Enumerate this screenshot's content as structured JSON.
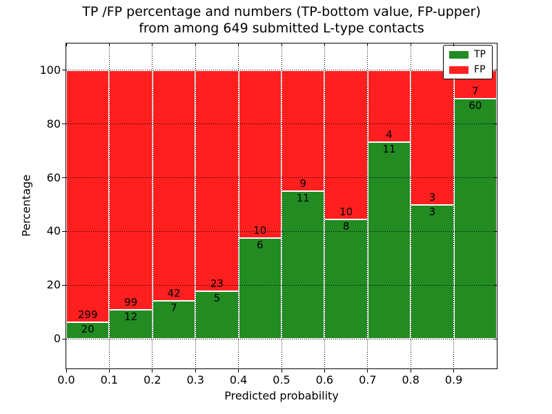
{
  "figure": {
    "title_line1": "TP /FP percentage and numbers (TP-bottom value, FP-upper)",
    "title_line2": "from among 649 submitted L-type contacts"
  },
  "chart_data": {
    "type": "bar",
    "stacked": true,
    "normalized": "percent-of-bin-total",
    "title": "TP /FP percentage and numbers (TP-bottom value, FP-upper)\nfrom among 649 submitted L-type contacts",
    "xlabel": "Predicted probability",
    "ylabel": "Percentage",
    "total_contacts": 649,
    "bin_width": 0.1,
    "bin_starts": [
      0.0,
      0.1,
      0.2,
      0.3,
      0.4,
      0.5,
      0.6,
      0.7,
      0.8,
      0.9
    ],
    "series": [
      {
        "name": "TP",
        "color": "#228b22",
        "counts": [
          20,
          12,
          7,
          5,
          6,
          11,
          8,
          11,
          3,
          60
        ]
      },
      {
        "name": "FP",
        "color": "#ff1f1f",
        "counts": [
          299,
          99,
          42,
          23,
          10,
          9,
          10,
          4,
          3,
          7
        ]
      }
    ],
    "tp_percent": [
      6.27,
      10.81,
      14.29,
      17.86,
      37.5,
      55.0,
      44.44,
      73.33,
      50.0,
      89.55
    ],
    "bar_value_labels": "TP count below boundary, FP count above boundary",
    "xlim": [
      0,
      1
    ],
    "ylim": [
      -11,
      110
    ],
    "x_ticks": [
      "0.0",
      "0.1",
      "0.2",
      "0.3",
      "0.4",
      "0.5",
      "0.6",
      "0.7",
      "0.8",
      "0.9"
    ],
    "y_ticks": [
      0,
      20,
      40,
      60,
      80,
      100
    ],
    "grid": true,
    "grid_style": "dotted",
    "legend": {
      "position": "upper right",
      "entries": [
        {
          "label": "TP",
          "color": "#228b22"
        },
        {
          "label": "FP",
          "color": "#ff1f1f"
        }
      ]
    }
  }
}
